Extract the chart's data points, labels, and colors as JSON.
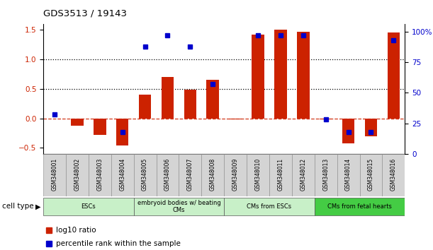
{
  "title": "GDS3513 / 19143",
  "samples": [
    "GSM348001",
    "GSM348002",
    "GSM348003",
    "GSM348004",
    "GSM348005",
    "GSM348006",
    "GSM348007",
    "GSM348008",
    "GSM348009",
    "GSM348010",
    "GSM348011",
    "GSM348012",
    "GSM348013",
    "GSM348014",
    "GSM348015",
    "GSM348016"
  ],
  "log10_ratio": [
    0.0,
    -0.12,
    -0.28,
    -0.46,
    0.4,
    0.7,
    0.48,
    0.65,
    -0.02,
    1.42,
    1.5,
    1.47,
    -0.02,
    -0.42,
    -0.3,
    1.45
  ],
  "percentile_rank_values": [
    32,
    null,
    null,
    18,
    88,
    97,
    88,
    57,
    null,
    97,
    97,
    97,
    28,
    18,
    18,
    93
  ],
  "cell_type_groups": [
    {
      "label": "ESCs",
      "start": 0,
      "end": 3,
      "color": "#c8f0c8"
    },
    {
      "label": "embryoid bodies w/ beating\nCMs",
      "start": 4,
      "end": 7,
      "color": "#c8f0c8"
    },
    {
      "label": "CMs from ESCs",
      "start": 8,
      "end": 11,
      "color": "#c8f0c8"
    },
    {
      "label": "CMs from fetal hearts",
      "start": 12,
      "end": 15,
      "color": "#44cc44"
    }
  ],
  "bar_color": "#CC2200",
  "dot_color": "#0000CC",
  "hline_y_dotted": [
    0.5,
    1.0
  ],
  "hline_y_dashed": [
    0.0
  ],
  "ylim_left": [
    -0.6,
    1.6
  ],
  "ylim_right": [
    0,
    106.67
  ],
  "yticks_left": [
    -0.5,
    0.0,
    0.5,
    1.0,
    1.5
  ],
  "yticks_right": [
    0,
    25,
    50,
    75,
    100
  ],
  "ytick_labels_right": [
    "0",
    "25",
    "50",
    "75",
    "100%"
  ],
  "legend_items": [
    {
      "label": "log10 ratio",
      "color": "#CC2200"
    },
    {
      "label": "percentile rank within the sample",
      "color": "#0000CC"
    }
  ]
}
